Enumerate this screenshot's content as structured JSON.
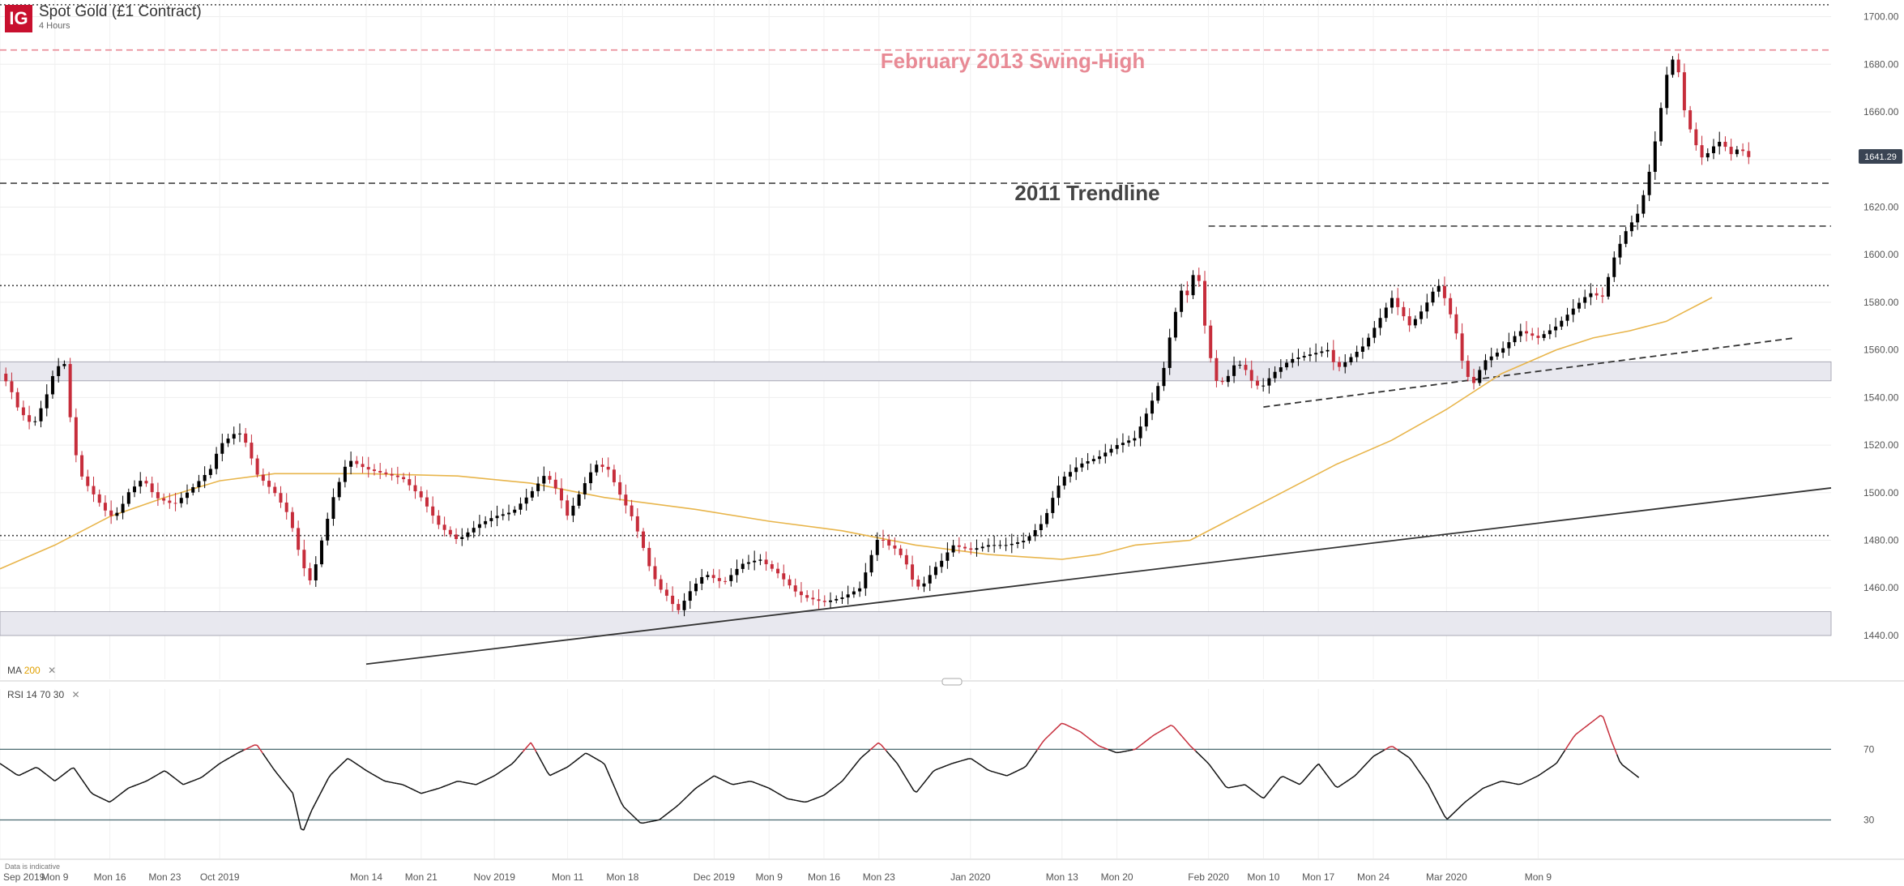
{
  "header": {
    "logo_text": "IG",
    "title": "Spot Gold (£1 Contract)",
    "timeframe": "4 Hours"
  },
  "annotations": {
    "swing_high": "February 2013 Swing-High",
    "trendline": "2011 Trendline"
  },
  "indicators": {
    "ma": {
      "name": "MA",
      "value": "200",
      "close_icon": "✕"
    },
    "rsi": {
      "name": "RSI",
      "p1": "14",
      "p2": "70",
      "p3": "30",
      "close_icon": "✕"
    }
  },
  "footer_note": "Data is indicative",
  "colors": {
    "up": "#000000",
    "down": "#c62d3b",
    "ma_line": "#e8b54b",
    "swing_high": "#e88a95",
    "rsi_overbought": "#c62d3b",
    "price_tag": "#3a4453"
  },
  "chart_data": [
    {
      "type": "candlestick",
      "title": "Spot Gold (£1 Contract)",
      "timeframe": "4 Hours",
      "ylim": [
        1440,
        1700
      ],
      "y_ticks": [
        1440.0,
        1460.0,
        1480.0,
        1500.0,
        1520.0,
        1540.0,
        1560.0,
        1580.0,
        1600.0,
        1620.0,
        1640.0,
        1660.0,
        1680.0,
        1700.0
      ],
      "x_tick_labels": [
        "Sep 2019",
        "Mon 9",
        "Mon 16",
        "Mon 23",
        "Oct 2019",
        "Mon 14",
        "Mon 21",
        "Nov 2019",
        "Mon 11",
        "Mon 18",
        "Dec 2019",
        "Mon 9",
        "Mon 16",
        "Mon 23",
        "Jan 2020",
        "Mon 13",
        "Mon 20",
        "Feb 2020",
        "Mon 10",
        "Mon 17",
        "Mon 24",
        "Mar 2020",
        "Mon 9"
      ],
      "x_tick_pos": [
        0,
        0.03,
        0.06,
        0.09,
        0.12,
        0.2,
        0.23,
        0.27,
        0.31,
        0.34,
        0.39,
        0.42,
        0.45,
        0.48,
        0.53,
        0.58,
        0.61,
        0.66,
        0.69,
        0.72,
        0.75,
        0.79,
        0.84
      ],
      "current_price": 1641.29,
      "price_path": [
        [
          0,
          1550
        ],
        [
          0.005,
          1545
        ],
        [
          0.01,
          1535
        ],
        [
          0.018,
          1528
        ],
        [
          0.025,
          1540
        ],
        [
          0.03,
          1552
        ],
        [
          0.035,
          1555
        ],
        [
          0.04,
          1520
        ],
        [
          0.045,
          1506
        ],
        [
          0.055,
          1495
        ],
        [
          0.06,
          1490
        ],
        [
          0.065,
          1492
        ],
        [
          0.07,
          1500
        ],
        [
          0.078,
          1506
        ],
        [
          0.085,
          1498
        ],
        [
          0.095,
          1495
        ],
        [
          0.105,
          1502
        ],
        [
          0.115,
          1510
        ],
        [
          0.12,
          1520
        ],
        [
          0.13,
          1526
        ],
        [
          0.135,
          1520
        ],
        [
          0.14,
          1508
        ],
        [
          0.15,
          1500
        ],
        [
          0.158,
          1490
        ],
        [
          0.165,
          1470
        ],
        [
          0.17,
          1462
        ],
        [
          0.175,
          1478
        ],
        [
          0.182,
          1498
        ],
        [
          0.19,
          1514
        ],
        [
          0.2,
          1510
        ],
        [
          0.21,
          1508
        ],
        [
          0.22,
          1506
        ],
        [
          0.23,
          1498
        ],
        [
          0.24,
          1486
        ],
        [
          0.25,
          1480
        ],
        [
          0.26,
          1486
        ],
        [
          0.27,
          1490
        ],
        [
          0.28,
          1492
        ],
        [
          0.29,
          1500
        ],
        [
          0.298,
          1508
        ],
        [
          0.305,
          1500
        ],
        [
          0.31,
          1490
        ],
        [
          0.318,
          1502
        ],
        [
          0.325,
          1512
        ],
        [
          0.332,
          1510
        ],
        [
          0.338,
          1500
        ],
        [
          0.345,
          1490
        ],
        [
          0.35,
          1480
        ],
        [
          0.355,
          1468
        ],
        [
          0.36,
          1460
        ],
        [
          0.365,
          1456
        ],
        [
          0.37,
          1450
        ],
        [
          0.378,
          1460
        ],
        [
          0.385,
          1466
        ],
        [
          0.395,
          1462
        ],
        [
          0.405,
          1470
        ],
        [
          0.415,
          1472
        ],
        [
          0.425,
          1466
        ],
        [
          0.435,
          1458
        ],
        [
          0.44,
          1456
        ],
        [
          0.45,
          1454
        ],
        [
          0.46,
          1456
        ],
        [
          0.47,
          1460
        ],
        [
          0.475,
          1472
        ],
        [
          0.48,
          1482
        ],
        [
          0.485,
          1478
        ],
        [
          0.49,
          1476
        ],
        [
          0.495,
          1470
        ],
        [
          0.5,
          1460
        ],
        [
          0.505,
          1462
        ],
        [
          0.51,
          1468
        ],
        [
          0.515,
          1472
        ],
        [
          0.52,
          1478
        ],
        [
          0.53,
          1476
        ],
        [
          0.54,
          1478
        ],
        [
          0.55,
          1478
        ],
        [
          0.56,
          1480
        ],
        [
          0.57,
          1488
        ],
        [
          0.575,
          1498
        ],
        [
          0.58,
          1506
        ],
        [
          0.59,
          1512
        ],
        [
          0.6,
          1515
        ],
        [
          0.61,
          1520
        ],
        [
          0.62,
          1523
        ],
        [
          0.63,
          1540
        ],
        [
          0.635,
          1550
        ],
        [
          0.64,
          1570
        ],
        [
          0.645,
          1585
        ],
        [
          0.65,
          1582
        ],
        [
          0.653,
          1600
        ],
        [
          0.657,
          1575
        ],
        [
          0.66,
          1560
        ],
        [
          0.665,
          1545
        ],
        [
          0.67,
          1548
        ],
        [
          0.675,
          1555
        ],
        [
          0.68,
          1552
        ],
        [
          0.685,
          1545
        ],
        [
          0.69,
          1545
        ],
        [
          0.695,
          1550
        ],
        [
          0.705,
          1556
        ],
        [
          0.715,
          1558
        ],
        [
          0.725,
          1560
        ],
        [
          0.73,
          1552
        ],
        [
          0.735,
          1555
        ],
        [
          0.745,
          1562
        ],
        [
          0.755,
          1575
        ],
        [
          0.76,
          1582
        ],
        [
          0.765,
          1576
        ],
        [
          0.77,
          1570
        ],
        [
          0.778,
          1578
        ],
        [
          0.785,
          1588
        ],
        [
          0.79,
          1580
        ],
        [
          0.795,
          1568
        ],
        [
          0.8,
          1550
        ],
        [
          0.805,
          1546
        ],
        [
          0.81,
          1555
        ],
        [
          0.82,
          1560
        ],
        [
          0.83,
          1568
        ],
        [
          0.84,
          1565
        ],
        [
          0.85,
          1570
        ],
        [
          0.86,
          1578
        ],
        [
          0.868,
          1584
        ],
        [
          0.875,
          1582
        ],
        [
          0.882,
          1600
        ],
        [
          0.888,
          1610
        ],
        [
          0.895,
          1618
        ],
        [
          0.9,
          1632
        ],
        [
          0.905,
          1652
        ],
        [
          0.91,
          1675
        ],
        [
          0.915,
          1685
        ],
        [
          0.92,
          1660
        ],
        [
          0.925,
          1648
        ],
        [
          0.93,
          1640
        ],
        [
          0.935,
          1645
        ],
        [
          0.94,
          1648
        ],
        [
          0.945,
          1642
        ],
        [
          0.95,
          1645
        ],
        [
          0.955,
          1641
        ]
      ],
      "ma200_path": [
        [
          0,
          1468
        ],
        [
          0.03,
          1478
        ],
        [
          0.06,
          1490
        ],
        [
          0.09,
          1498
        ],
        [
          0.12,
          1505
        ],
        [
          0.15,
          1508
        ],
        [
          0.2,
          1508
        ],
        [
          0.25,
          1507
        ],
        [
          0.29,
          1504
        ],
        [
          0.33,
          1498
        ],
        [
          0.38,
          1493
        ],
        [
          0.42,
          1488
        ],
        [
          0.46,
          1484
        ],
        [
          0.5,
          1478
        ],
        [
          0.54,
          1474
        ],
        [
          0.58,
          1472
        ],
        [
          0.6,
          1474
        ],
        [
          0.62,
          1478
        ],
        [
          0.65,
          1480
        ],
        [
          0.67,
          1488
        ],
        [
          0.7,
          1500
        ],
        [
          0.73,
          1512
        ],
        [
          0.76,
          1522
        ],
        [
          0.79,
          1535
        ],
        [
          0.82,
          1550
        ],
        [
          0.85,
          1560
        ],
        [
          0.87,
          1565
        ],
        [
          0.89,
          1568
        ],
        [
          0.91,
          1572
        ],
        [
          0.92,
          1576
        ],
        [
          0.935,
          1582
        ]
      ],
      "horizontal_levels": [
        {
          "value": 1686,
          "style": "dashed",
          "color": "#e88a95"
        },
        {
          "value": 1630,
          "style": "dashed",
          "color": "#444"
        },
        {
          "value": 1612,
          "style": "dashed",
          "color": "#444",
          "x_start": 0.66
        },
        {
          "value": 1587,
          "style": "dotted",
          "color": "#444"
        },
        {
          "value": 1482,
          "style": "dotted",
          "color": "#444"
        },
        {
          "value": 1705,
          "style": "dotted",
          "color": "#444"
        }
      ],
      "zones": [
        {
          "from": 1547,
          "to": 1555
        },
        {
          "from": 1440,
          "to": 1450
        }
      ],
      "trendlines": [
        {
          "x1": 0.2,
          "y1": 1428,
          "x2": 1.0,
          "y2": 1502,
          "style": "solid"
        },
        {
          "x1": 0.69,
          "y1": 1536,
          "x2": 0.98,
          "y2": 1565,
          "style": "dashed"
        }
      ]
    },
    {
      "type": "line",
      "title": "RSI 14 70 30",
      "ylim": [
        10,
        95
      ],
      "y_ticks": [
        70,
        30
      ],
      "overbought": 70,
      "oversold": 30,
      "rsi_path": [
        [
          0,
          62
        ],
        [
          0.01,
          55
        ],
        [
          0.02,
          60
        ],
        [
          0.03,
          52
        ],
        [
          0.04,
          60
        ],
        [
          0.05,
          45
        ],
        [
          0.06,
          40
        ],
        [
          0.07,
          48
        ],
        [
          0.08,
          52
        ],
        [
          0.09,
          58
        ],
        [
          0.1,
          50
        ],
        [
          0.11,
          54
        ],
        [
          0.12,
          62
        ],
        [
          0.13,
          68
        ],
        [
          0.14,
          73
        ],
        [
          0.15,
          58
        ],
        [
          0.16,
          45
        ],
        [
          0.165,
          22
        ],
        [
          0.17,
          35
        ],
        [
          0.18,
          55
        ],
        [
          0.19,
          65
        ],
        [
          0.2,
          58
        ],
        [
          0.21,
          52
        ],
        [
          0.22,
          50
        ],
        [
          0.23,
          45
        ],
        [
          0.24,
          48
        ],
        [
          0.25,
          52
        ],
        [
          0.26,
          50
        ],
        [
          0.27,
          55
        ],
        [
          0.28,
          62
        ],
        [
          0.29,
          74
        ],
        [
          0.3,
          55
        ],
        [
          0.31,
          60
        ],
        [
          0.32,
          68
        ],
        [
          0.33,
          62
        ],
        [
          0.34,
          38
        ],
        [
          0.35,
          28
        ],
        [
          0.36,
          30
        ],
        [
          0.37,
          38
        ],
        [
          0.38,
          48
        ],
        [
          0.39,
          55
        ],
        [
          0.4,
          50
        ],
        [
          0.41,
          52
        ],
        [
          0.42,
          48
        ],
        [
          0.43,
          42
        ],
        [
          0.44,
          40
        ],
        [
          0.45,
          44
        ],
        [
          0.46,
          52
        ],
        [
          0.47,
          65
        ],
        [
          0.48,
          74
        ],
        [
          0.49,
          62
        ],
        [
          0.5,
          45
        ],
        [
          0.51,
          58
        ],
        [
          0.52,
          62
        ],
        [
          0.53,
          65
        ],
        [
          0.54,
          58
        ],
        [
          0.55,
          55
        ],
        [
          0.56,
          60
        ],
        [
          0.57,
          75
        ],
        [
          0.58,
          85
        ],
        [
          0.59,
          80
        ],
        [
          0.6,
          72
        ],
        [
          0.61,
          68
        ],
        [
          0.62,
          70
        ],
        [
          0.63,
          78
        ],
        [
          0.64,
          84
        ],
        [
          0.65,
          72
        ],
        [
          0.66,
          62
        ],
        [
          0.67,
          48
        ],
        [
          0.68,
          50
        ],
        [
          0.69,
          42
        ],
        [
          0.7,
          55
        ],
        [
          0.71,
          50
        ],
        [
          0.72,
          62
        ],
        [
          0.73,
          48
        ],
        [
          0.74,
          55
        ],
        [
          0.75,
          66
        ],
        [
          0.76,
          72
        ],
        [
          0.77,
          65
        ],
        [
          0.78,
          50
        ],
        [
          0.79,
          30
        ],
        [
          0.8,
          40
        ],
        [
          0.81,
          48
        ],
        [
          0.82,
          52
        ],
        [
          0.83,
          50
        ],
        [
          0.84,
          55
        ],
        [
          0.85,
          62
        ],
        [
          0.86,
          78
        ],
        [
          0.87,
          86
        ],
        [
          0.875,
          90
        ],
        [
          0.88,
          75
        ],
        [
          0.885,
          62
        ],
        [
          0.89,
          58
        ],
        [
          0.895,
          54
        ]
      ]
    }
  ]
}
